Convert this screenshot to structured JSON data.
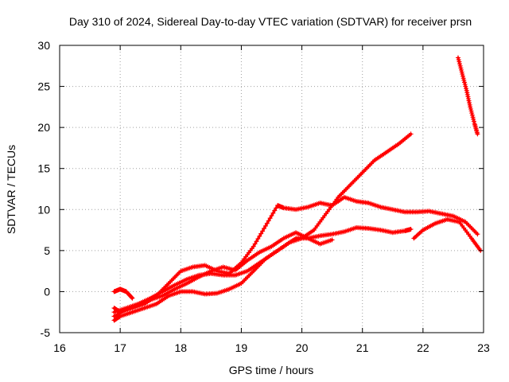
{
  "chart_data": {
    "type": "line",
    "title": "Day 310 of 2024, Sidereal Day-to-day VTEC variation (SDTVAR) for receiver prsn",
    "xlabel": "GPS time / hours",
    "ylabel": "SDTVAR / TECUs",
    "xlim": [
      16,
      23
    ],
    "ylim": [
      -5,
      30
    ],
    "xticks": [
      16,
      17,
      18,
      19,
      20,
      21,
      22,
      23
    ],
    "yticks": [
      -5,
      0,
      5,
      10,
      15,
      20,
      25,
      30
    ],
    "xtick_labels": [
      "16",
      "17",
      "18",
      "19",
      "20",
      "21",
      "22",
      "23"
    ],
    "ytick_labels": [
      "-5",
      "0",
      "5",
      "10",
      "15",
      "20",
      "25",
      "30"
    ],
    "grid": true,
    "legend": "none",
    "marker": "plus",
    "color": "#ff0000",
    "series": [
      {
        "x": [
          16.9,
          17.0,
          17.2,
          17.4,
          17.6,
          17.8,
          18.0,
          18.2,
          18.4,
          18.6,
          18.8,
          19.0,
          19.2,
          19.4,
          19.6,
          19.8,
          20.0,
          20.2,
          20.4,
          20.6,
          20.8,
          21.0,
          21.2,
          21.4,
          21.6,
          21.8
        ],
        "y": [
          -3.5,
          -3.0,
          -2.5,
          -2.0,
          -1.5,
          -0.5,
          0.0,
          0.0,
          -0.3,
          -0.2,
          0.3,
          1.0,
          2.5,
          4.0,
          5.0,
          6.0,
          6.5,
          7.5,
          9.5,
          11.5,
          13.0,
          14.5,
          16.0,
          17.0,
          18.0,
          19.2
        ]
      },
      {
        "x": [
          16.9,
          17.0,
          17.2,
          17.4,
          17.6,
          17.8,
          18.0,
          18.2,
          18.4,
          18.6,
          18.8,
          19.0,
          19.2,
          19.4,
          19.6,
          19.7,
          19.9,
          20.1,
          20.3,
          20.5,
          20.7,
          20.9,
          21.1,
          21.3,
          21.5,
          21.7,
          21.9,
          22.1,
          22.3,
          22.5,
          22.7,
          22.9
        ],
        "y": [
          -2.0,
          -2.5,
          -2.0,
          -1.5,
          -0.5,
          1.0,
          2.5,
          3.0,
          3.2,
          2.5,
          2.2,
          3.5,
          5.5,
          8.0,
          10.5,
          10.2,
          10.0,
          10.3,
          10.8,
          10.5,
          11.5,
          11.0,
          10.8,
          10.3,
          10.0,
          9.7,
          9.7,
          9.8,
          9.5,
          9.2,
          8.5,
          7.0
        ]
      },
      {
        "x": [
          16.9,
          17.1,
          17.3,
          17.5,
          17.7,
          17.9,
          18.1,
          18.3,
          18.5,
          18.7,
          18.9,
          19.1,
          19.3,
          19.5,
          19.7,
          19.9,
          20.1,
          20.3,
          20.5,
          20.7,
          20.9,
          21.1,
          21.3,
          21.5,
          21.7,
          21.8
        ],
        "y": [
          -2.5,
          -2.0,
          -1.5,
          -0.8,
          0.0,
          0.8,
          1.5,
          2.0,
          2.2,
          2.0,
          2.0,
          2.5,
          3.5,
          4.5,
          5.5,
          6.5,
          6.5,
          6.8,
          7.0,
          7.3,
          7.8,
          7.7,
          7.5,
          7.2,
          7.4,
          7.6
        ]
      },
      {
        "x": [
          16.9,
          17.1,
          17.3,
          17.5,
          17.7,
          17.9,
          18.1,
          18.3,
          18.5,
          18.7,
          18.9,
          19.1,
          19.3,
          19.5,
          19.7,
          19.9,
          20.1,
          20.3,
          20.5
        ],
        "y": [
          -3.0,
          -2.2,
          -1.5,
          -1.0,
          -0.5,
          0.3,
          1.0,
          1.8,
          2.5,
          3.0,
          2.6,
          3.8,
          4.8,
          5.5,
          6.5,
          7.2,
          6.5,
          5.8,
          6.3
        ]
      },
      {
        "x": [
          16.9,
          17.0,
          17.1,
          17.2
        ],
        "y": [
          0.0,
          0.3,
          0.0,
          -0.8
        ]
      },
      {
        "x": [
          21.85,
          22.0,
          22.2,
          22.4,
          22.6,
          22.8,
          22.95
        ],
        "y": [
          6.5,
          7.5,
          8.3,
          8.8,
          8.5,
          6.5,
          5.0
        ]
      },
      {
        "x": [
          22.58,
          22.65,
          22.72,
          22.78,
          22.85,
          22.9
        ],
        "y": [
          28.5,
          26.5,
          24.5,
          22.5,
          20.5,
          19.2
        ]
      }
    ]
  }
}
